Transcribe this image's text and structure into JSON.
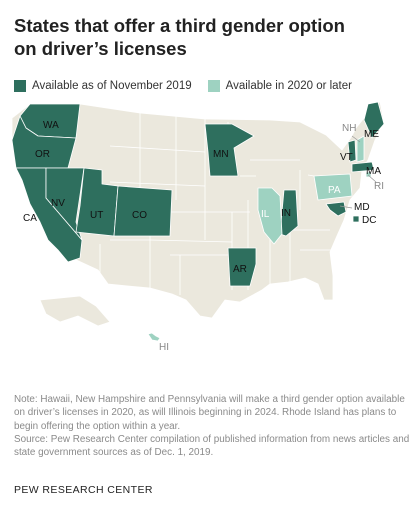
{
  "title_line1": "States that offer a third gender option",
  "title_line2": "on driver’s licenses",
  "colors": {
    "available_now": "#2e6f5e",
    "available_later": "#9ed2c1",
    "other": "#ebe8dd",
    "border": "#ffffff"
  },
  "legend": {
    "now": "Available as of November 2019",
    "later": "Available in 2020 or later"
  },
  "states_now": {
    "WA": "WA",
    "OR": "OR",
    "CA": "CA",
    "NV": "NV",
    "UT": "UT",
    "CO": "CO",
    "MN": "MN",
    "AR": "AR",
    "IN": "IN",
    "ME": "ME",
    "VT": "VT",
    "MA": "MA",
    "MD": "MD",
    "DC": "DC"
  },
  "states_later": {
    "IL": "IL",
    "PA": "PA",
    "NH": "NH",
    "RI": "RI",
    "HI": "HI"
  },
  "note": "Note: Hawaii, New Hampshire and Pennsylvania will make a third gender option available on driver’s licenses in 2020, as will Illinois beginning in 2024. Rhode Island has plans to begin offering the option within a year.",
  "source": "Source: Pew Research Center compilation of published information from news articles and state government sources as of Dec. 1, 2019.",
  "brand": "PEW RESEARCH CENTER"
}
